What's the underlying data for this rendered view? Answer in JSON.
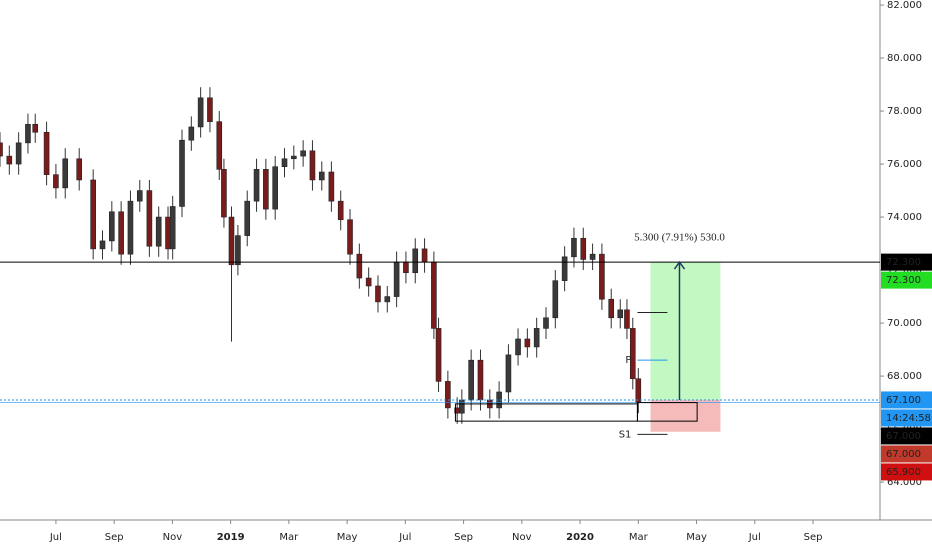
{
  "chart_data": {
    "type": "candlestick",
    "x": [
      4.08,
      4.4,
      4.72,
      5.04,
      5.29,
      5.68,
      6.0,
      6.32,
      6.8,
      7.28,
      7.6,
      7.92,
      8.24,
      8.56,
      8.88,
      9.21,
      9.53,
      9.85,
      10.01,
      10.33,
      10.65,
      10.97,
      11.29,
      11.61,
      11.77,
      12.03,
      12.25,
      12.57,
      12.89,
      13.21,
      13.53,
      13.85,
      14.17,
      14.49,
      14.81,
      15.13,
      15.46,
      15.78,
      16.1,
      16.42,
      16.74,
      17.06,
      17.38,
      17.7,
      18.02,
      18.34,
      18.66,
      18.98,
      19.14,
      19.46,
      19.78,
      19.94,
      20.26,
      20.58,
      20.9,
      21.22,
      21.54,
      21.87,
      22.19,
      22.51,
      22.83,
      23.15,
      23.47,
      23.79,
      24.11,
      24.43,
      24.75,
      25.07,
      25.38,
      25.61,
      25.81,
      26.0
    ],
    "open": [
      76.8,
      76.3,
      76.0,
      76.8,
      77.5,
      77.2,
      75.6,
      75.1,
      76.2,
      75.4,
      72.8,
      73.1,
      74.2,
      72.6,
      74.6,
      75.0,
      72.9,
      74.0,
      72.8,
      74.4,
      76.9,
      77.4,
      78.5,
      77.6,
      75.8,
      74.0,
      72.2,
      73.3,
      74.6,
      75.8,
      74.3,
      75.9,
      76.2,
      76.3,
      76.5,
      75.4,
      75.7,
      74.6,
      73.9,
      72.6,
      71.7,
      71.4,
      70.8,
      71.0,
      72.3,
      71.9,
      72.8,
      72.3,
      69.8,
      67.8,
      66.8,
      66.6,
      67.1,
      68.6,
      67.1,
      66.8,
      67.4,
      68.8,
      69.4,
      69.1,
      69.8,
      70.2,
      71.6,
      72.5,
      73.2,
      72.4,
      72.6,
      70.9,
      70.2,
      70.5,
      69.8,
      67.9
    ],
    "high": [
      77.2,
      76.7,
      77.2,
      77.9,
      77.9,
      77.6,
      76.0,
      76.6,
      76.6,
      75.8,
      73.5,
      74.6,
      74.6,
      75.0,
      75.4,
      75.4,
      74.4,
      74.4,
      74.8,
      77.3,
      77.8,
      78.9,
      78.9,
      78.0,
      76.2,
      74.4,
      73.7,
      75.0,
      76.2,
      76.2,
      76.3,
      76.6,
      76.7,
      76.9,
      76.9,
      76.1,
      76.1,
      75.0,
      74.3,
      73.0,
      72.1,
      71.8,
      71.4,
      72.7,
      72.7,
      73.2,
      73.2,
      72.7,
      70.2,
      68.2,
      67.2,
      67.5,
      69.0,
      69.0,
      67.5,
      67.8,
      69.2,
      69.8,
      69.8,
      70.2,
      70.6,
      72.0,
      72.9,
      73.6,
      73.6,
      73.0,
      73.0,
      71.3,
      70.9,
      70.9,
      70.2,
      68.3
    ],
    "low": [
      75.9,
      75.6,
      75.6,
      76.4,
      76.8,
      75.2,
      74.7,
      74.7,
      75.0,
      72.4,
      72.4,
      72.7,
      72.2,
      72.2,
      74.2,
      72.5,
      72.5,
      72.4,
      72.4,
      74.0,
      76.5,
      77.0,
      77.2,
      75.4,
      73.6,
      69.3,
      71.8,
      72.9,
      74.2,
      73.9,
      73.9,
      75.5,
      75.8,
      75.9,
      75.0,
      75.0,
      74.2,
      73.5,
      72.2,
      71.3,
      71.0,
      70.4,
      70.4,
      70.6,
      71.5,
      71.5,
      71.9,
      69.4,
      67.4,
      66.4,
      66.2,
      66.2,
      66.7,
      66.7,
      66.4,
      66.4,
      67.0,
      68.4,
      68.7,
      68.7,
      69.4,
      69.8,
      71.2,
      72.1,
      72.0,
      72.0,
      70.5,
      69.8,
      69.8,
      69.4,
      67.5,
      66.6
    ],
    "close": [
      76.3,
      76.0,
      76.8,
      77.5,
      77.2,
      75.6,
      75.1,
      76.2,
      75.4,
      72.8,
      73.1,
      74.2,
      72.6,
      74.6,
      75.0,
      72.9,
      74.0,
      72.8,
      74.4,
      76.9,
      77.4,
      78.5,
      77.6,
      75.8,
      74.0,
      72.2,
      73.3,
      74.6,
      75.8,
      74.3,
      75.9,
      76.2,
      76.3,
      76.5,
      75.4,
      75.7,
      74.6,
      73.9,
      72.6,
      71.7,
      71.4,
      70.8,
      71.0,
      72.3,
      71.9,
      72.8,
      72.3,
      69.8,
      67.8,
      66.8,
      66.6,
      67.1,
      68.6,
      67.1,
      66.8,
      67.4,
      68.8,
      69.4,
      69.1,
      69.8,
      70.2,
      71.6,
      72.5,
      73.2,
      72.4,
      72.6,
      70.9,
      70.2,
      70.5,
      69.8,
      67.9,
      67.0
    ],
    "up_color": "#3a3a3a",
    "down_color": "#7a1c1c",
    "xlim": [
      4.08,
      34.3
    ],
    "ylim": [
      62.57,
      82.19
    ],
    "xticks": [
      {
        "value": 6,
        "label": "Jul"
      },
      {
        "value": 8,
        "label": "Sep"
      },
      {
        "value": 10,
        "label": "Nov"
      },
      {
        "value": 12,
        "label": "2019"
      },
      {
        "value": 14,
        "label": "Mar"
      },
      {
        "value": 16,
        "label": "May"
      },
      {
        "value": 18,
        "label": "Jul"
      },
      {
        "value": 20,
        "label": "Sep"
      },
      {
        "value": 22,
        "label": "Nov"
      },
      {
        "value": 24,
        "label": "2020"
      },
      {
        "value": 26,
        "label": "Mar"
      },
      {
        "value": 28,
        "label": "May"
      },
      {
        "value": 30,
        "label": "Jul"
      },
      {
        "value": 32,
        "label": "Sep"
      }
    ],
    "yticks": [
      {
        "value": 64,
        "label": "64.000"
      },
      {
        "value": 66,
        "label": "66.000"
      },
      {
        "value": 68,
        "label": "68.000"
      },
      {
        "value": 70,
        "label": "70.000"
      },
      {
        "value": 72,
        "label": "72.000"
      },
      {
        "value": 74,
        "label": "74.000"
      },
      {
        "value": 76,
        "label": "76.000"
      },
      {
        "value": 78,
        "label": "78.000"
      },
      {
        "value": 80,
        "label": "80.000"
      },
      {
        "value": 82,
        "label": "82.000"
      }
    ],
    "horizontal_line": 72.3,
    "entry_line": 67.1,
    "current_line": 67.0,
    "position": {
      "x": [
        26.42,
        28.82
      ],
      "entry": 67.1,
      "target": 72.3,
      "stop": 65.9,
      "label": "5.300 (7.91%) 530.0"
    },
    "boxes": [
      {
        "x": [
          19.72,
          25.97
        ],
        "y": [
          66.95,
          66.3
        ]
      },
      {
        "x": [
          25.97,
          28.02
        ],
        "y": [
          67.0,
          66.3
        ]
      }
    ],
    "pivot_x": [
      25.97,
      27.0
    ],
    "pivots": [
      {
        "value": 70.4,
        "color": "#222222"
      },
      {
        "label": "P",
        "value": 68.6,
        "color": "#2196f3"
      },
      {
        "label": "S1",
        "value": 65.8,
        "color": "#222222"
      }
    ],
    "price_tags": [
      {
        "label": "72.300",
        "value": 72.3,
        "color": "#000000"
      },
      {
        "label": "72.300",
        "value": 72.3,
        "color": "#22dd22"
      },
      {
        "label": "67.100",
        "value": 67.1,
        "color": "#2196f3"
      },
      {
        "label": "14:24:58",
        "color": "#2196f3"
      },
      {
        "label": "67.000",
        "value": 67.0,
        "color": "#000000"
      },
      {
        "label": "67.000",
        "value": 67.0,
        "color": "#c0392b"
      },
      {
        "label": "65.900",
        "value": 65.9,
        "color": "#d01010"
      }
    ]
  }
}
